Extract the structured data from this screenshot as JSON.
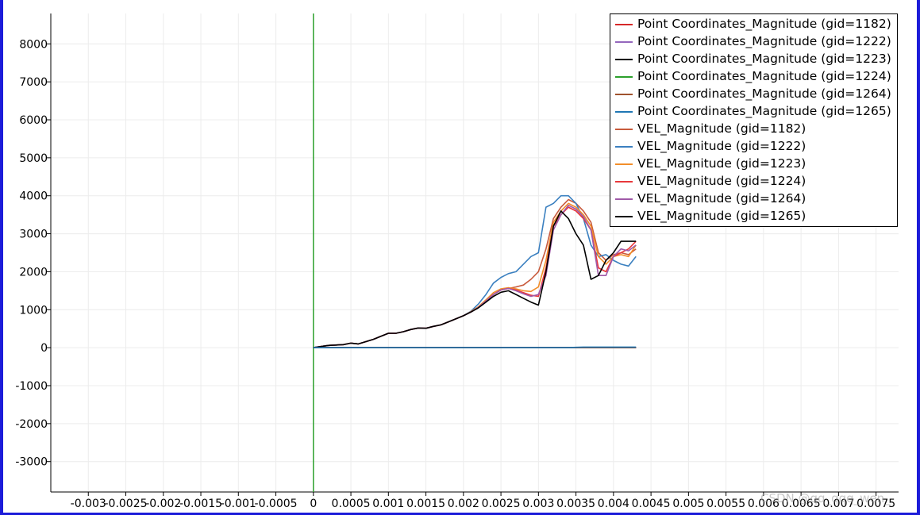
{
  "chart_data": {
    "type": "line",
    "xlim": [
      -0.0035,
      0.0078
    ],
    "ylim": [
      -3800,
      8800
    ],
    "grid": true,
    "legend_position": "top-right",
    "x_ticks": [
      {
        "value": -0.003,
        "label": "-0.003"
      },
      {
        "value": -0.0025,
        "label": "-0.0025"
      },
      {
        "value": -0.002,
        "label": "-0.002"
      },
      {
        "value": -0.0015,
        "label": "-0.0015"
      },
      {
        "value": -0.001,
        "label": "-0.001"
      },
      {
        "value": -0.0005,
        "label": "-0.0005"
      },
      {
        "value": 0,
        "label": "0"
      },
      {
        "value": 0.0005,
        "label": "0.0005"
      },
      {
        "value": 0.001,
        "label": "0.001"
      },
      {
        "value": 0.0015,
        "label": "0.0015"
      },
      {
        "value": 0.002,
        "label": "0.002"
      },
      {
        "value": 0.0025,
        "label": "0.0025"
      },
      {
        "value": 0.003,
        "label": "0.003"
      },
      {
        "value": 0.0035,
        "label": "0.0035"
      },
      {
        "value": 0.004,
        "label": "0.004"
      },
      {
        "value": 0.0045,
        "label": "0.0045"
      },
      {
        "value": 0.005,
        "label": "0.005"
      },
      {
        "value": 0.0055,
        "label": "0.0055"
      },
      {
        "value": 0.006,
        "label": "0.006"
      },
      {
        "value": 0.0065,
        "label": "0.0065"
      },
      {
        "value": 0.007,
        "label": "0.007"
      },
      {
        "value": 0.0075,
        "label": "0.0075"
      }
    ],
    "y_ticks": [
      {
        "value": 8000,
        "label": "8000"
      },
      {
        "value": 7000,
        "label": "7000"
      },
      {
        "value": 6000,
        "label": "6000"
      },
      {
        "value": 5000,
        "label": "5000"
      },
      {
        "value": 4000,
        "label": "4000"
      },
      {
        "value": 3000,
        "label": "3000"
      },
      {
        "value": 2000,
        "label": "2000"
      },
      {
        "value": 1000,
        "label": "1000"
      },
      {
        "value": 0,
        "label": "0"
      },
      {
        "value": -1000,
        "label": "-1000"
      },
      {
        "value": -2000,
        "label": "-2000"
      },
      {
        "value": -3000,
        "label": "-3000"
      }
    ],
    "x": [
      0,
      0.0001,
      0.0002,
      0.0003,
      0.0004,
      0.0005,
      0.0006,
      0.0007,
      0.0008,
      0.0009,
      0.001,
      0.0011,
      0.0012,
      0.0013,
      0.0014,
      0.0015,
      0.0016,
      0.0017,
      0.0018,
      0.0019,
      0.002,
      0.0021,
      0.0022,
      0.0023,
      0.0024,
      0.0025,
      0.0026,
      0.0027,
      0.0028,
      0.0029,
      0.003,
      0.0031,
      0.0032,
      0.0033,
      0.0034,
      0.0035,
      0.0036,
      0.0037,
      0.0038,
      0.0039,
      0.004,
      0.0041,
      0.0042,
      0.0043
    ],
    "series": [
      {
        "name": "Point Coordinates_Magnitude (gid=1182)",
        "color": "#d62728",
        "values": [
          0,
          0,
          0,
          0,
          0,
          0,
          0,
          0,
          0,
          0,
          0,
          0,
          0,
          0,
          0,
          0,
          0,
          0,
          0,
          0,
          0,
          0,
          0,
          0,
          0,
          0,
          0,
          0,
          0,
          0,
          0,
          0,
          0,
          0,
          0,
          0,
          0,
          0,
          0,
          0,
          0,
          0,
          0,
          0
        ]
      },
      {
        "name": "Point Coordinates_Magnitude (gid=1222)",
        "color": "#9467bd",
        "values": [
          0,
          0,
          0,
          0,
          0,
          0,
          0,
          0,
          0,
          0,
          0,
          0,
          0,
          0,
          0,
          0,
          0,
          0,
          0,
          0,
          0,
          0,
          0,
          0,
          0,
          0,
          0,
          0,
          0,
          0,
          0,
          0,
          0,
          0,
          0,
          0,
          0,
          0,
          0,
          0,
          0,
          0,
          0,
          0
        ]
      },
      {
        "name": "Point Coordinates_Magnitude (gid=1223)",
        "color": "#000000",
        "values": [
          0,
          0,
          0,
          0,
          0,
          0,
          0,
          0,
          0,
          0,
          0,
          0,
          0,
          0,
          0,
          0,
          0,
          0,
          0,
          0,
          0,
          0,
          0,
          0,
          0,
          0,
          0,
          0,
          0,
          0,
          0,
          0,
          0,
          0,
          0,
          0,
          0,
          0,
          0,
          0,
          0,
          0,
          0,
          0
        ]
      },
      {
        "name": "Point Coordinates_Magnitude (gid=1224)",
        "color": "#2ca02c",
        "values": [
          0,
          0,
          0,
          0,
          0,
          0,
          0,
          0,
          0,
          0,
          0,
          0,
          0,
          0,
          0,
          0,
          0,
          0,
          0,
          0,
          0,
          0,
          0,
          0,
          0,
          0,
          0,
          0,
          0,
          0,
          0,
          0,
          0,
          0,
          0,
          0,
          0,
          0,
          0,
          0,
          0,
          0,
          0,
          0
        ]
      },
      {
        "name": "Point Coordinates_Magnitude (gid=1264)",
        "color": "#a0522d",
        "values": [
          0,
          0,
          0,
          0,
          0,
          0,
          0,
          0,
          0,
          0,
          0,
          0,
          0,
          0,
          0,
          0,
          0,
          0,
          0,
          0,
          0,
          0,
          0,
          0,
          0,
          0,
          0,
          0,
          0,
          0,
          0,
          0,
          0,
          0,
          0,
          0,
          0,
          0,
          0,
          0,
          0,
          0,
          0,
          0
        ]
      },
      {
        "name": "Point Coordinates_Magnitude (gid=1265)",
        "color": "#1f77b4",
        "values": [
          0,
          0,
          0,
          0,
          0,
          0,
          0,
          0,
          0,
          0,
          0,
          0,
          0,
          0,
          0,
          0,
          0,
          0,
          0,
          0,
          0,
          0,
          0,
          0,
          0,
          0,
          0,
          0,
          0,
          0,
          0,
          0,
          0,
          0,
          0,
          10,
          15,
          15,
          15,
          15,
          15,
          15,
          15,
          15
        ]
      },
      {
        "name": "VEL_Magnitude (gid=1182)",
        "color": "#c85a3c",
        "values": [
          0,
          30,
          60,
          70,
          80,
          120,
          100,
          160,
          220,
          300,
          380,
          380,
          420,
          480,
          520,
          510,
          560,
          600,
          680,
          760,
          840,
          940,
          1060,
          1230,
          1400,
          1520,
          1560,
          1600,
          1650,
          1800,
          2000,
          2600,
          3400,
          3700,
          3900,
          3800,
          3600,
          3300,
          2500,
          2300,
          2450,
          2500,
          2450,
          2600
        ]
      },
      {
        "name": "VEL_Magnitude (gid=1222)",
        "color": "#3b80c0",
        "values": [
          0,
          30,
          60,
          70,
          80,
          120,
          100,
          160,
          220,
          300,
          380,
          380,
          420,
          480,
          520,
          510,
          560,
          600,
          680,
          760,
          840,
          960,
          1150,
          1400,
          1700,
          1850,
          1950,
          2000,
          2200,
          2400,
          2500,
          3700,
          3800,
          4000,
          4000,
          3800,
          3400,
          2700,
          2400,
          2450,
          2300,
          2200,
          2150,
          2400
        ]
      },
      {
        "name": "VEL_Magnitude (gid=1223)",
        "color": "#f28e2b",
        "values": [
          0,
          30,
          60,
          70,
          80,
          120,
          100,
          160,
          220,
          300,
          380,
          380,
          420,
          480,
          520,
          510,
          560,
          600,
          680,
          760,
          840,
          950,
          1080,
          1260,
          1450,
          1550,
          1580,
          1550,
          1500,
          1480,
          1600,
          2300,
          3300,
          3600,
          3800,
          3700,
          3500,
          3200,
          2400,
          2200,
          2400,
          2450,
          2400,
          2700
        ]
      },
      {
        "name": "VEL_Magnitude (gid=1224)",
        "color": "#e8383b",
        "values": [
          0,
          30,
          60,
          70,
          80,
          120,
          100,
          160,
          220,
          300,
          380,
          380,
          420,
          480,
          520,
          510,
          560,
          600,
          680,
          760,
          840,
          940,
          1060,
          1230,
          1400,
          1520,
          1560,
          1520,
          1450,
          1380,
          1350,
          2100,
          3200,
          3500,
          3700,
          3600,
          3400,
          3100,
          2100,
          2000,
          2400,
          2500,
          2600,
          2800
        ]
      },
      {
        "name": "VEL_Magnitude (gid=1264)",
        "color": "#a05aa8",
        "values": [
          0,
          30,
          60,
          70,
          80,
          120,
          100,
          160,
          220,
          300,
          380,
          380,
          420,
          480,
          520,
          510,
          560,
          600,
          680,
          760,
          840,
          940,
          1060,
          1230,
          1400,
          1520,
          1560,
          1500,
          1420,
          1350,
          1400,
          1900,
          3100,
          3500,
          3750,
          3650,
          3450,
          3100,
          1900,
          1900,
          2400,
          2600,
          2550,
          2700
        ]
      },
      {
        "name": "VEL_Magnitude (gid=1265)",
        "color": "#000000",
        "values": [
          0,
          30,
          60,
          70,
          80,
          120,
          100,
          160,
          220,
          300,
          380,
          380,
          420,
          480,
          520,
          510,
          560,
          600,
          680,
          760,
          840,
          940,
          1050,
          1200,
          1350,
          1460,
          1500,
          1400,
          1300,
          1200,
          1120,
          2000,
          3200,
          3600,
          3400,
          3000,
          2700,
          1800,
          1900,
          2300,
          2500,
          2800,
          2800,
          2800
        ]
      }
    ]
  },
  "watermark": "CSDN @qq_qqq_wen_"
}
